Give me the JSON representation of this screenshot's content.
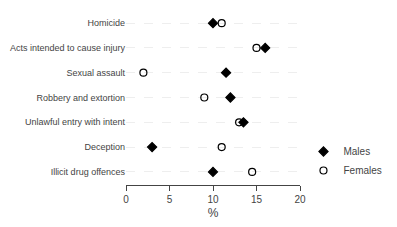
{
  "chart_data": {
    "type": "dot",
    "categories": [
      "Illicit drug offences",
      "Deception",
      "Unlawful entry with intent",
      "Robbery and extortion",
      "Sexual assault",
      "Acts intended to cause injury",
      "Homicide"
    ],
    "series": [
      {
        "name": "Males",
        "color": "#000000",
        "marker": "diamond",
        "values": [
          10.0,
          3.0,
          13.5,
          12.0,
          11.5,
          16.0,
          10.0
        ]
      },
      {
        "name": "Females",
        "color": "#000000",
        "marker": "circle-open",
        "values": [
          14.5,
          11.0,
          13.0,
          9.0,
          2.0,
          15.0,
          11.0
        ]
      }
    ],
    "xlabel": "%",
    "xlim": [
      0,
      20
    ],
    "xticks": [
      0,
      5,
      10,
      15,
      20
    ],
    "grid": "y",
    "legend": "lower right"
  }
}
